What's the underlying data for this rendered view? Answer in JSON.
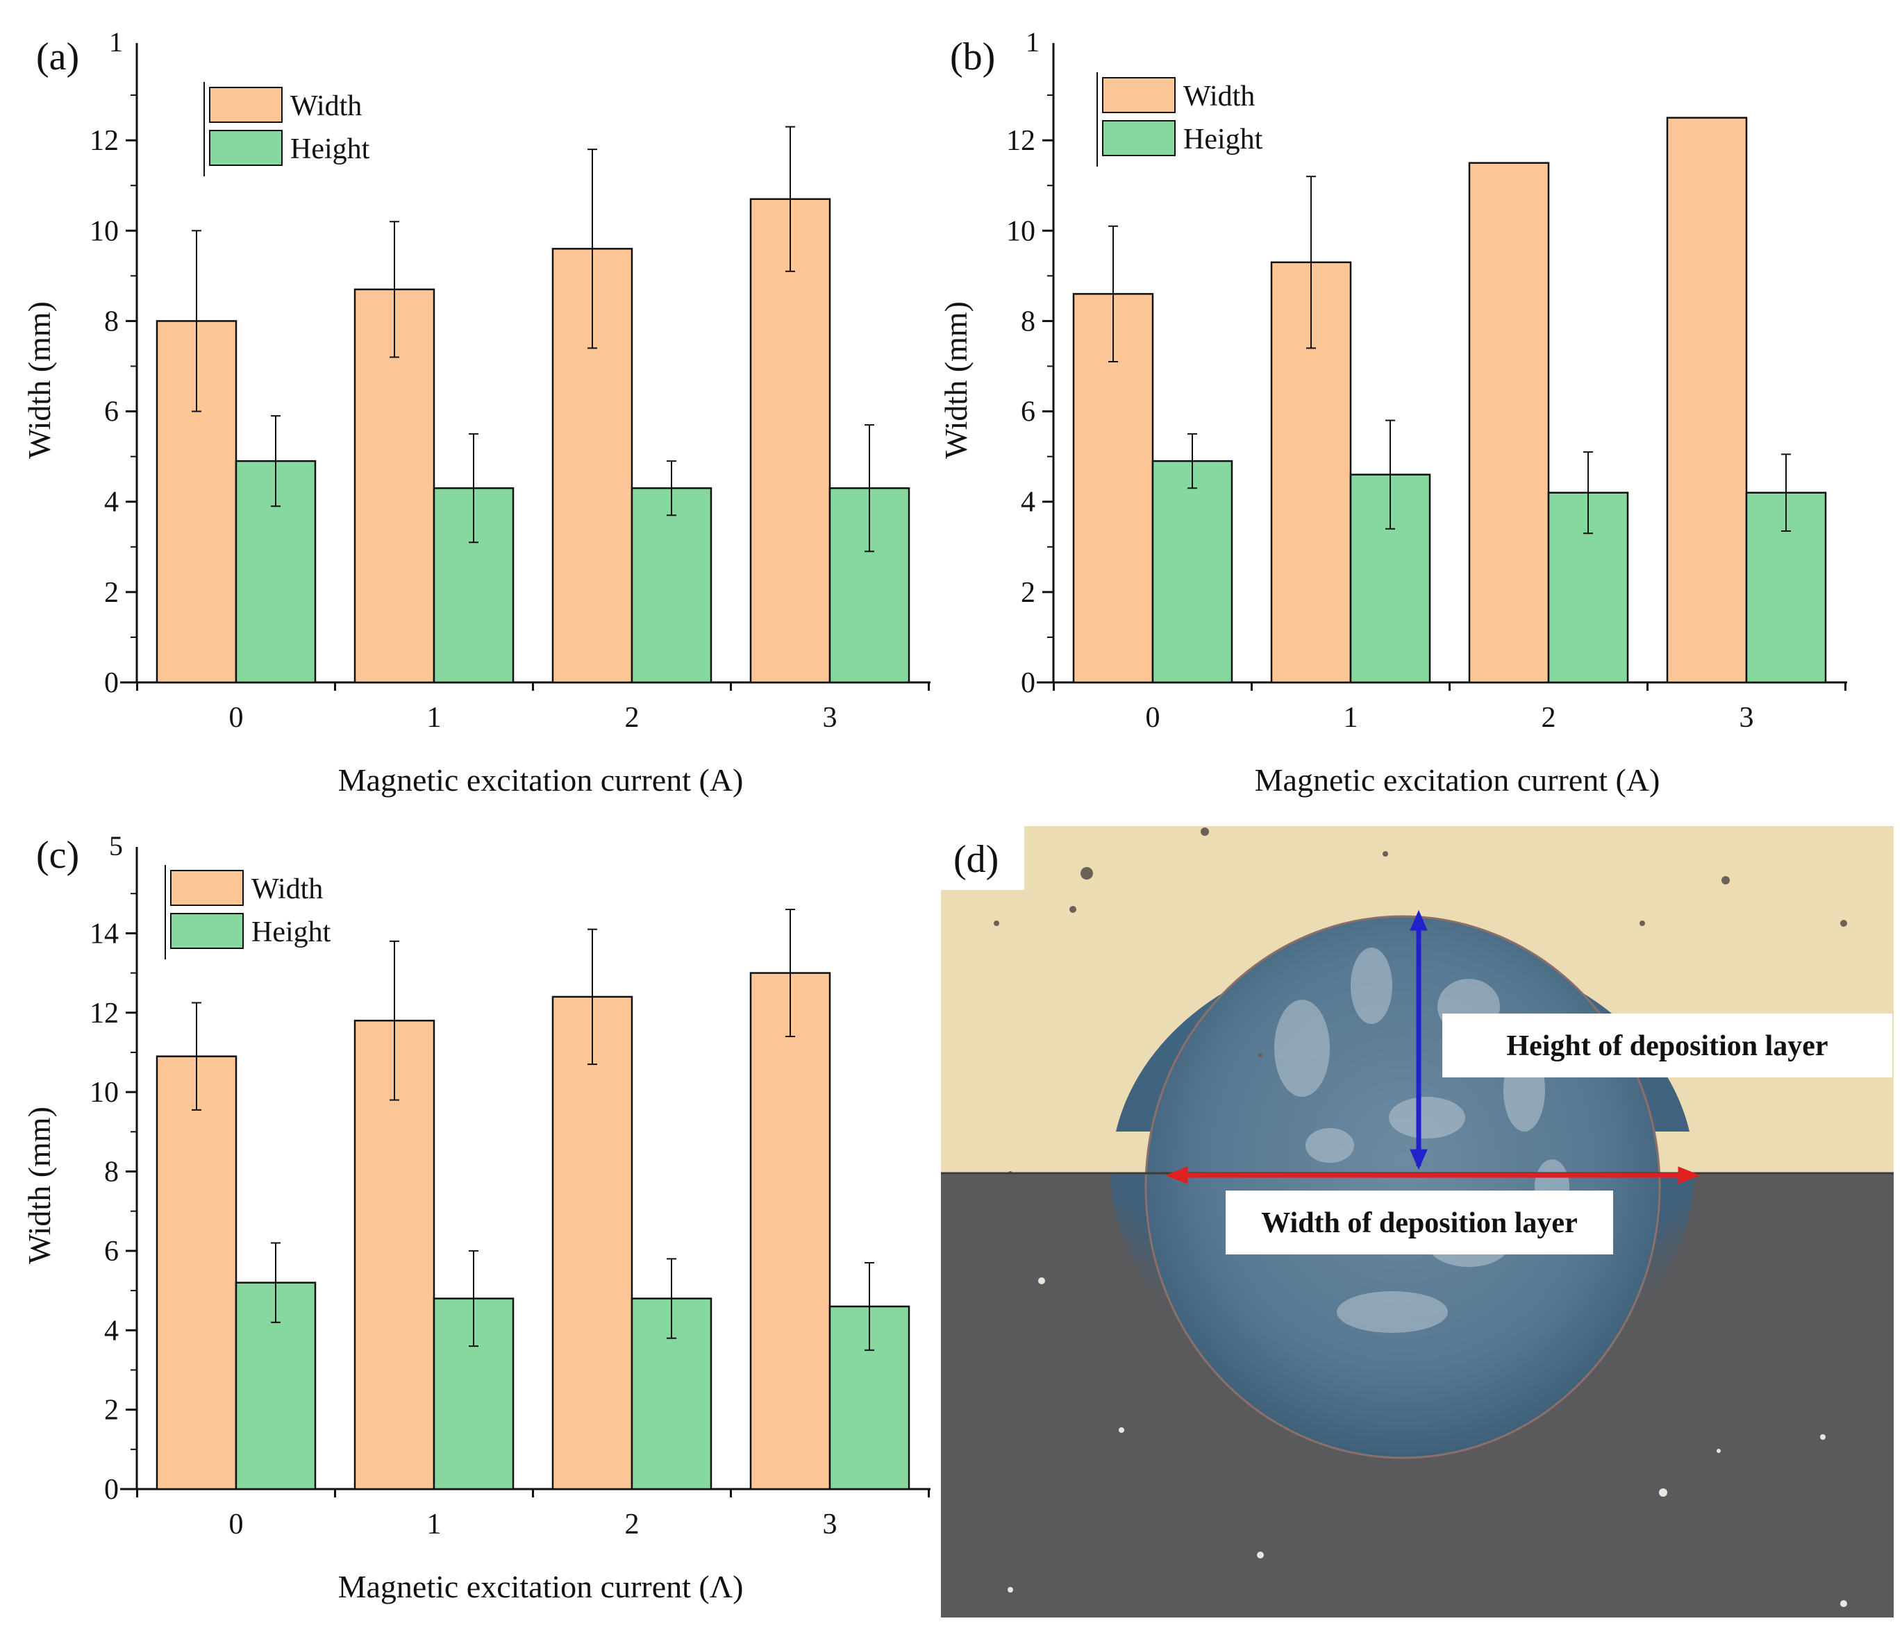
{
  "chart_data": [
    {
      "type": "bar",
      "panel_label": "(a)",
      "axis_top_fragment": "1",
      "categories": [
        "0",
        "1",
        "2",
        "3"
      ],
      "series": [
        {
          "name": "Width",
          "color": "#fdc697",
          "values": [
            8.0,
            8.7,
            9.6,
            10.7
          ],
          "errors": [
            2.0,
            1.5,
            2.2,
            1.6
          ]
        },
        {
          "name": "Height",
          "color": "#86d89f",
          "values": [
            4.9,
            4.3,
            4.3,
            4.3
          ],
          "errors": [
            1.0,
            1.2,
            0.6,
            1.4
          ]
        }
      ],
      "xlabel": "Magnetic excitation current (A)",
      "ylabel": "Width (mm)",
      "ylim": [
        0,
        14
      ],
      "yticks": [
        0,
        2,
        4,
        6,
        8,
        10,
        12
      ],
      "legend_position": "top-left"
    },
    {
      "type": "bar",
      "panel_label": "(b)",
      "axis_top_fragment": "1",
      "categories": [
        "0",
        "1",
        "2",
        "3"
      ],
      "series": [
        {
          "name": "Width",
          "color": "#fdc697",
          "values": [
            8.6,
            9.3,
            11.5,
            12.5
          ],
          "errors": [
            1.5,
            1.9,
            0,
            0
          ]
        },
        {
          "name": "Height",
          "color": "#86d89f",
          "values": [
            4.9,
            4.6,
            4.2,
            4.2
          ],
          "errors": [
            0.6,
            1.2,
            0.9,
            0.85
          ]
        }
      ],
      "xlabel": "Magnetic excitation current (A)",
      "ylabel": "Width (mm)",
      "ylim": [
        0,
        14
      ],
      "yticks": [
        0,
        2,
        4,
        6,
        8,
        10,
        12
      ],
      "legend_position": "top-left"
    },
    {
      "type": "bar",
      "panel_label": "(c)",
      "axis_top_fragment": "5",
      "categories": [
        "0",
        "1",
        "2",
        "3"
      ],
      "series": [
        {
          "name": "Width",
          "color": "#fdc697",
          "values": [
            10.9,
            11.8,
            12.4,
            13.0
          ],
          "errors": [
            1.35,
            2.0,
            1.7,
            1.6
          ]
        },
        {
          "name": "Height",
          "color": "#86d89f",
          "values": [
            5.2,
            4.8,
            4.8,
            4.6
          ],
          "errors": [
            1.0,
            1.2,
            1.0,
            1.1
          ]
        }
      ],
      "xlabel": "Magnetic excitation current (Λ)",
      "ylabel": "Width (mm)",
      "ylim": [
        0,
        16
      ],
      "yticks": [
        0,
        2,
        4,
        6,
        8,
        10,
        12,
        14
      ],
      "legend_position": "top-left"
    }
  ],
  "photo": {
    "panel_label": "(d)",
    "height_label": "Height of deposition layer",
    "width_label": "Width of deposition layer",
    "colors": {
      "height_arrow": "#2222cc",
      "width_arrow": "#e02020",
      "upper_background": "#ecdcb4",
      "lower_background": "#5a5a5d",
      "deposit": "#5f7e96"
    }
  }
}
